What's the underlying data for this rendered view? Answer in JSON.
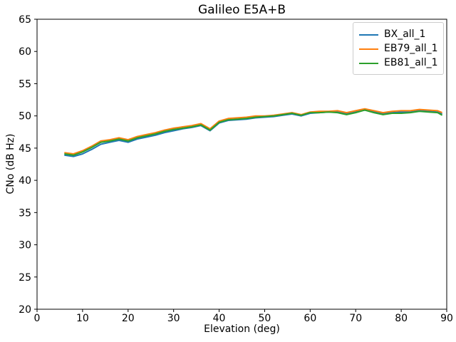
{
  "figure": {
    "title": "Galileo E5A+B",
    "xlabel": "Elevation (deg)",
    "ylabel": "CNo (dB Hz)"
  },
  "chart_data": {
    "type": "line",
    "title": "Galileo E5A+B",
    "xlabel": "Elevation (deg)",
    "ylabel": "CNo (dB Hz)",
    "xlim": [
      0,
      90
    ],
    "ylim": [
      20,
      65
    ],
    "x_ticks": [
      0,
      10,
      20,
      30,
      40,
      50,
      60,
      70,
      80,
      90
    ],
    "y_ticks": [
      20,
      25,
      30,
      35,
      40,
      45,
      50,
      55,
      60,
      65
    ],
    "grid": false,
    "legend_position": "upper right",
    "x": [
      6,
      8,
      10,
      12,
      14,
      16,
      18,
      20,
      22,
      24,
      26,
      28,
      30,
      32,
      34,
      36,
      38,
      40,
      42,
      44,
      46,
      48,
      50,
      52,
      54,
      56,
      58,
      60,
      62,
      64,
      66,
      68,
      70,
      72,
      74,
      76,
      78,
      80,
      82,
      84,
      86,
      88,
      89
    ],
    "series": [
      {
        "name": "BX_all_1",
        "color": "#1f77b4",
        "values": [
          43.9,
          43.7,
          44.1,
          44.8,
          45.6,
          45.9,
          46.2,
          45.9,
          46.4,
          46.7,
          47.0,
          47.4,
          47.7,
          48.0,
          48.2,
          48.5,
          47.7,
          48.9,
          49.3,
          49.4,
          49.5,
          49.7,
          49.8,
          49.9,
          50.1,
          50.3,
          50.0,
          50.4,
          50.5,
          50.6,
          50.6,
          50.3,
          50.6,
          50.9,
          50.6,
          50.4,
          50.5,
          50.6,
          50.6,
          50.8,
          50.7,
          50.6,
          50.3
        ]
      },
      {
        "name": "EB79_all_1",
        "color": "#ff7f0e",
        "values": [
          44.3,
          44.1,
          44.6,
          45.3,
          46.1,
          46.3,
          46.6,
          46.3,
          46.8,
          47.1,
          47.4,
          47.8,
          48.1,
          48.3,
          48.5,
          48.8,
          48.0,
          49.2,
          49.6,
          49.7,
          49.8,
          50.0,
          50.0,
          50.1,
          50.3,
          50.5,
          50.2,
          50.6,
          50.7,
          50.7,
          50.8,
          50.5,
          50.8,
          51.1,
          50.8,
          50.5,
          50.7,
          50.8,
          50.8,
          51.0,
          50.9,
          50.8,
          50.5
        ]
      },
      {
        "name": "EB81_all_1",
        "color": "#2ca02c",
        "values": [
          44.1,
          43.9,
          44.4,
          45.1,
          45.9,
          46.1,
          46.4,
          46.1,
          46.6,
          46.9,
          47.2,
          47.6,
          47.9,
          48.1,
          48.3,
          48.6,
          47.8,
          49.0,
          49.4,
          49.5,
          49.6,
          49.8,
          49.9,
          50.0,
          50.2,
          50.4,
          50.1,
          50.5,
          50.5,
          50.6,
          50.5,
          50.2,
          50.5,
          50.9,
          50.5,
          50.2,
          50.4,
          50.4,
          50.5,
          50.7,
          50.6,
          50.5,
          50.1
        ]
      }
    ]
  }
}
